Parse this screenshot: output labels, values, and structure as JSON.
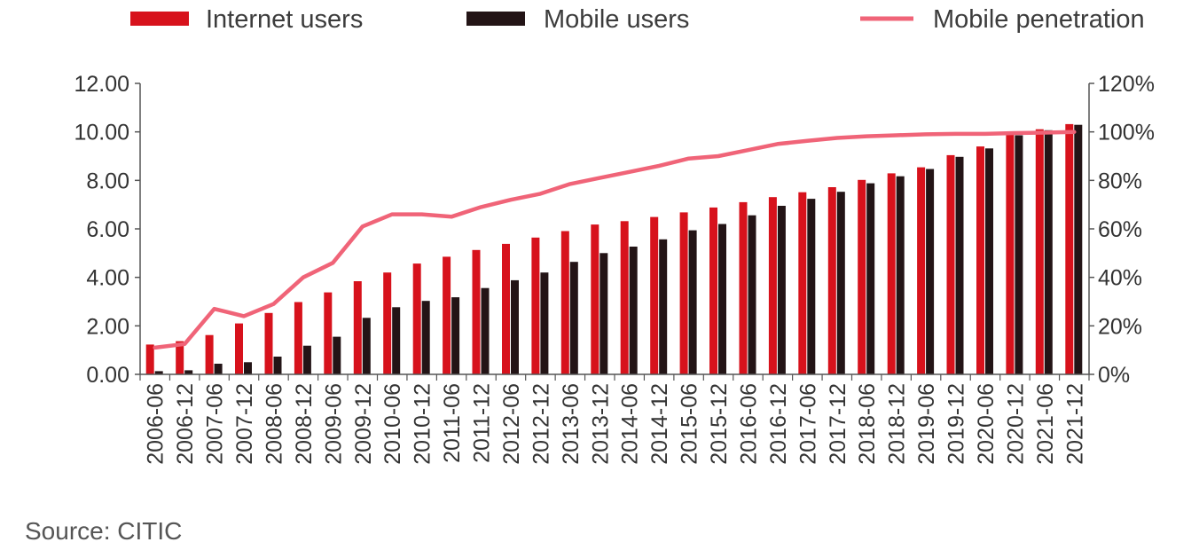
{
  "chart_data": {
    "type": "bar",
    "title": "",
    "xlabel": "",
    "ylabel": "",
    "categories": [
      "2006-06",
      "2006-12",
      "2007-06",
      "2007-12",
      "2008-06",
      "2008-12",
      "2009-06",
      "2009-12",
      "2010-06",
      "2010-12",
      "2011-06",
      "2011-12",
      "2012-06",
      "2012-12",
      "2013-06",
      "2013-12",
      "2014-06",
      "2014-12",
      "2015-06",
      "2015-12",
      "2016-06",
      "2016-12",
      "2017-06",
      "2017-12",
      "2018-06",
      "2018-12",
      "2019-06",
      "2019-12",
      "2020-06",
      "2020-12",
      "2021-06",
      "2021-12"
    ],
    "ylim": [
      0,
      12
    ],
    "y_ticks": [
      "0.00",
      "2.00",
      "4.00",
      "6.00",
      "8.00",
      "10.00",
      "12.00"
    ],
    "y2lim": [
      0,
      1.2
    ],
    "y2_ticks": [
      "0%",
      "20%",
      "40%",
      "60%",
      "80%",
      "100%",
      "120%"
    ],
    "legend_position": "top",
    "grid": false,
    "series": [
      {
        "name": "Internet users",
        "kind": "bar",
        "axis": "left",
        "color": "#d7121c",
        "values": [
          1.23,
          1.37,
          1.62,
          2.1,
          2.53,
          2.98,
          3.38,
          3.84,
          4.2,
          4.57,
          4.85,
          5.13,
          5.38,
          5.64,
          5.91,
          6.18,
          6.32,
          6.49,
          6.68,
          6.88,
          7.1,
          7.31,
          7.51,
          7.72,
          8.02,
          8.29,
          8.54,
          9.04,
          9.4,
          9.89,
          10.11,
          10.32
        ]
      },
      {
        "name": "Mobile users",
        "kind": "bar",
        "axis": "left",
        "color": "#231416",
        "values": [
          0.13,
          0.17,
          0.44,
          0.5,
          0.73,
          1.18,
          1.55,
          2.33,
          2.77,
          3.03,
          3.18,
          3.56,
          3.88,
          4.2,
          4.64,
          5.0,
          5.27,
          5.57,
          5.94,
          6.2,
          6.56,
          6.95,
          7.24,
          7.53,
          7.88,
          8.17,
          8.47,
          8.97,
          9.32,
          9.86,
          10.07,
          10.29
        ]
      },
      {
        "name": "Mobile penetration",
        "kind": "line",
        "axis": "right",
        "color": "#f06478",
        "values": [
          0.11,
          0.125,
          0.27,
          0.24,
          0.29,
          0.4,
          0.46,
          0.61,
          0.66,
          0.66,
          0.65,
          0.69,
          0.72,
          0.745,
          0.785,
          0.81,
          0.835,
          0.86,
          0.89,
          0.9,
          0.925,
          0.95,
          0.963,
          0.975,
          0.982,
          0.986,
          0.99,
          0.992,
          0.992,
          0.995,
          0.997,
          1.0
        ]
      }
    ]
  },
  "legend": {
    "internet": "Internet users",
    "mobile": "Mobile users",
    "penetration": "Mobile penetration"
  },
  "source": "Source: CITIC"
}
